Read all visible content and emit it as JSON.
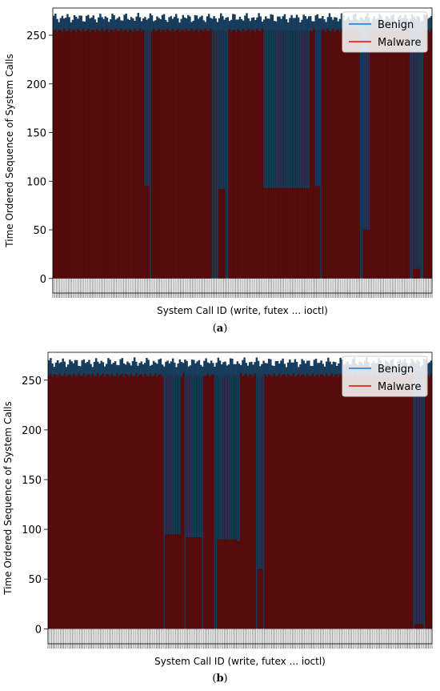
{
  "chart_data": [
    {
      "type": "line",
      "panel_label": "a",
      "xlabel": "System Call ID (write, futex ... ioctl)",
      "ylabel": "Time Ordered Sequence of System Calls",
      "ylim": [
        -15,
        278
      ],
      "yticks": [
        0,
        50,
        100,
        150,
        200,
        250
      ],
      "legend": {
        "placement": "top-right"
      },
      "grid": false,
      "series": [
        {
          "name": "Benign",
          "color": "#1f77b4",
          "legend_color": "#4a90d9",
          "fill_color": "#183d5c",
          "baseline_top": 268,
          "dips": [
            [
              0.555,
              0.675,
              93
            ],
            [
              0.24,
              0.255,
              95
            ],
            [
              0.435,
              0.455,
              92
            ],
            [
              0.63,
              0.66,
              95
            ],
            [
              0.69,
              0.705,
              95
            ],
            [
              0.525,
              0.545,
              95
            ],
            [
              0.82,
              0.835,
              50
            ],
            [
              0.95,
              0.97,
              10
            ]
          ]
        },
        {
          "name": "Malware",
          "color": "#d62728",
          "legend_color": "#ee3a2c",
          "fill_color": "#5a0d0d",
          "top": 255,
          "gaps": [
            [
              0.555,
              0.675
            ],
            [
              0.24,
              0.26
            ],
            [
              0.42,
              0.465
            ],
            [
              0.63,
              0.665
            ],
            [
              0.69,
              0.71
            ],
            [
              0.81,
              0.835
            ],
            [
              0.94,
              0.975
            ]
          ]
        }
      ]
    },
    {
      "type": "line",
      "panel_label": "b",
      "xlabel": "System Call ID (write, futex ... ioctl)",
      "ylabel": "Time Ordered Sequence of System Calls",
      "ylim": [
        -15,
        278
      ],
      "yticks": [
        0,
        50,
        100,
        150,
        200,
        250
      ],
      "legend": {
        "placement": "top-right"
      },
      "grid": false,
      "series": [
        {
          "name": "Benign",
          "color": "#1f77b4",
          "legend_color": "#4a90d9",
          "fill_color": "#183d5c",
          "baseline_top": 268,
          "dips": [
            [
              0.305,
              0.345,
              95
            ],
            [
              0.36,
              0.4,
              92
            ],
            [
              0.44,
              0.49,
              90
            ],
            [
              0.48,
              0.5,
              88
            ],
            [
              0.545,
              0.56,
              60
            ],
            [
              0.955,
              0.975,
              5
            ]
          ]
        },
        {
          "name": "Malware",
          "color": "#d62728",
          "legend_color": "#ee3a2c",
          "fill_color": "#5a0d0d",
          "top": 255,
          "gaps": [
            [
              0.3,
              0.345
            ],
            [
              0.355,
              0.405
            ],
            [
              0.43,
              0.5
            ],
            [
              0.54,
              0.565
            ],
            [
              0.95,
              0.98
            ]
          ]
        }
      ]
    }
  ]
}
